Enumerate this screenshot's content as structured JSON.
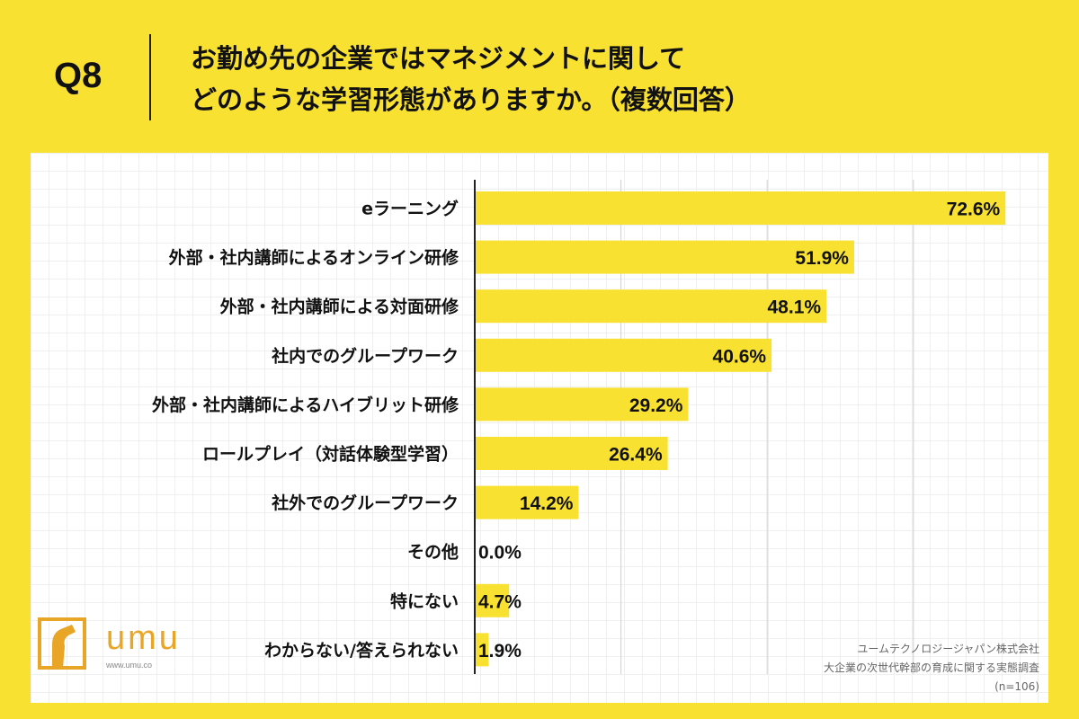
{
  "header": {
    "question_label": "Q8",
    "title_line1": "お勤め先の企業ではマネジメントに関して",
    "title_line2": "どのような学習形態がありますか。（複数回答）"
  },
  "chart_data": {
    "type": "bar",
    "orientation": "horizontal",
    "categories": [
      "eラーニング",
      "外部・社内講師によるオンライン研修",
      "外部・社内講師による対面研修",
      "社内でのグループワーク",
      "外部・社内講師によるハイブリット研修",
      "ロールプレイ（対話体験型学習）",
      "社外でのグループワーク",
      "その他",
      "特にない",
      "わからない/答えられない"
    ],
    "values": [
      72.6,
      51.9,
      48.1,
      40.6,
      29.2,
      26.4,
      14.2,
      0.0,
      4.7,
      1.9
    ],
    "value_labels": [
      "72.6%",
      "51.9%",
      "48.1%",
      "40.6%",
      "29.2%",
      "26.4%",
      "14.2%",
      "0.0%",
      "4.7%",
      "1.9%"
    ],
    "xlim": [
      0,
      80
    ],
    "grid": true,
    "bar_color": "#f9e131"
  },
  "logo": {
    "text": "umu",
    "url": "www.umu.co"
  },
  "source": {
    "company": "ユームテクノロジージャパン株式会社",
    "survey": "大企業の次世代幹部の育成に関する実態調査",
    "sample": "(n=106)"
  }
}
